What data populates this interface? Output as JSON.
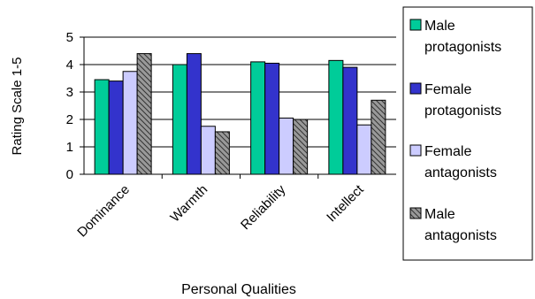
{
  "chart_data": {
    "type": "bar",
    "title": "",
    "xlabel": "Personal Qualities",
    "ylabel": "Rating Scale 1-5",
    "ylim": [
      0,
      5
    ],
    "yticks": [
      "0",
      "1",
      "2",
      "3",
      "4",
      "5"
    ],
    "grid": true,
    "legend_position": "right",
    "categories": [
      "Dominance",
      "Warmth",
      "Reliability",
      "Intellect"
    ],
    "series": [
      {
        "name": "Male protagonists",
        "legend_lines": [
          "Male",
          "protagonists"
        ],
        "color": "#00cc99",
        "pattern": "solid",
        "values": [
          3.45,
          4.0,
          4.1,
          4.15
        ]
      },
      {
        "name": "Female protagonists",
        "legend_lines": [
          "Female",
          "protagonists"
        ],
        "color": "#3333cc",
        "pattern": "solid",
        "values": [
          3.4,
          4.4,
          4.05,
          3.9
        ]
      },
      {
        "name": "Female antagonists",
        "legend_lines": [
          "Female",
          "antagonists"
        ],
        "color": "#ccccff",
        "pattern": "solid",
        "values": [
          3.75,
          1.75,
          2.05,
          1.8
        ]
      },
      {
        "name": "Male antagonists",
        "legend_lines": [
          "Male",
          "antagonists"
        ],
        "color": "#999999",
        "pattern": "hatch",
        "values": [
          4.4,
          1.55,
          2.0,
          2.7
        ]
      }
    ]
  }
}
